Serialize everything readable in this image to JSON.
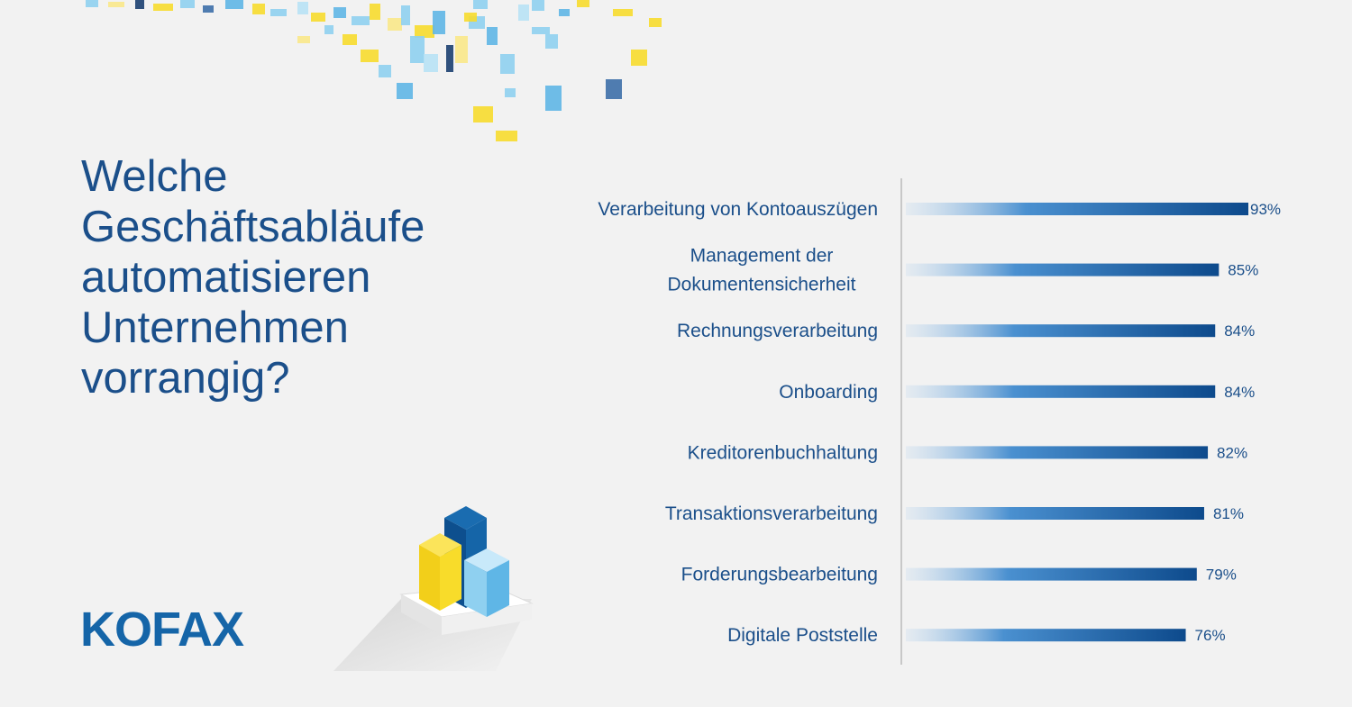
{
  "title": "Welche\nGeschäftsabläufe\nautomatisieren\nUnternehmen\nvorrangig?",
  "logo": "KOFAX",
  "chart_data": {
    "type": "bar",
    "orientation": "horizontal",
    "categories": [
      "Verarbeitung von Kontoauszügen",
      "Management der\nDokumentensicherheit",
      "Rechnungsverarbeitung",
      "Onboarding",
      "Kreditorenbuchhaltung",
      "Transaktionsverarbeitung",
      "Forderungsbearbeitung",
      "Digitale Poststelle"
    ],
    "values": [
      93,
      85,
      84,
      84,
      82,
      81,
      79,
      76
    ],
    "value_labels": [
      "93%",
      "85%",
      "84%",
      "84%",
      "82%",
      "81%",
      "79%",
      "76%"
    ],
    "unit": "%",
    "xlim": [
      0,
      100
    ],
    "grid": false,
    "legend": "none"
  },
  "colors": {
    "title": "#1b4f8a",
    "bar_dark": "#0d4a8c",
    "bar_light": "#bcd6ee",
    "logo": "#1565a8",
    "yellow": "#f7dc2e",
    "light_blue": "#8fd0f0"
  }
}
